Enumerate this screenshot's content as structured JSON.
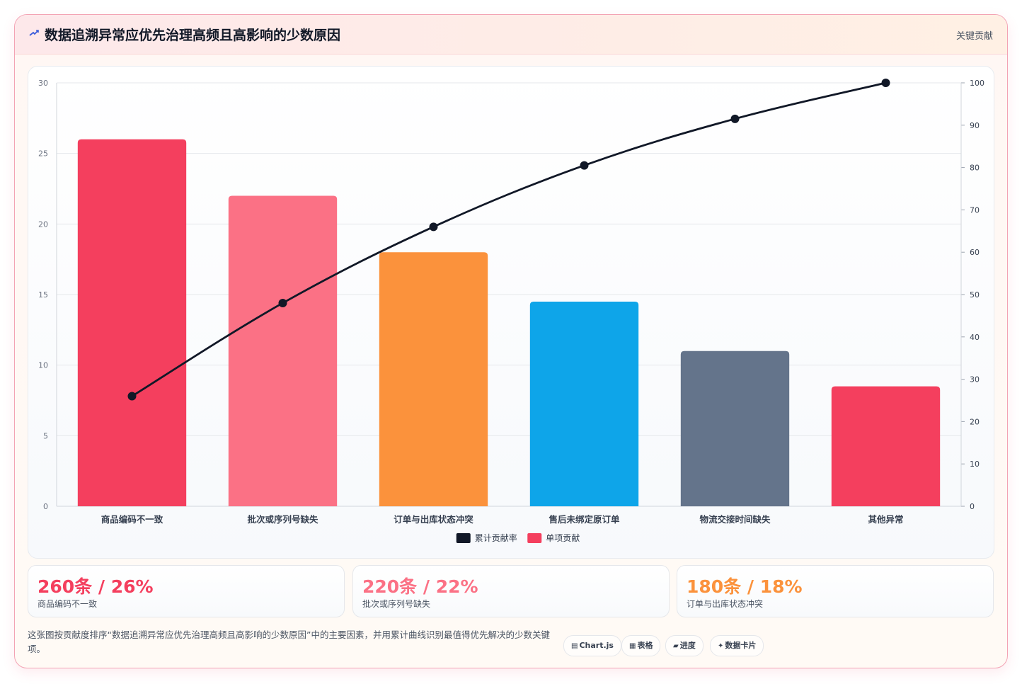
{
  "header": {
    "title": "数据追溯异常应优先治理高频且高影响的少数原因",
    "tag": "关键贡献",
    "icon": "trend-icon"
  },
  "chart_data": {
    "type": "bar",
    "categories": [
      "商品编码不一致",
      "批次或序列号缺失",
      "订单与出库状态冲突",
      "售后未绑定原订单",
      "物流交接时间缺失",
      "其他异常"
    ],
    "series": [
      {
        "name": "累计贡献率",
        "type": "line",
        "axis": "right",
        "color": "#111827",
        "values": [
          26,
          48,
          66,
          80.5,
          91.5,
          100
        ]
      },
      {
        "name": "单项贡献",
        "type": "bar",
        "axis": "left",
        "color": "#f43f5e",
        "values": [
          26,
          22,
          18,
          14.5,
          11,
          8.5
        ],
        "bar_colors": [
          "#f43f5e",
          "#fb7185",
          "#fb923c",
          "#0ea5e9",
          "#64748b",
          "#f43f5e"
        ]
      }
    ],
    "y_left": {
      "min": 0,
      "max": 30,
      "ticks": [
        0,
        5,
        10,
        15,
        20,
        25,
        30
      ]
    },
    "y_right": {
      "min": 0,
      "max": 100,
      "ticks": [
        0,
        10,
        20,
        30,
        40,
        50,
        60,
        70,
        80,
        90,
        100
      ]
    },
    "grid": true,
    "legend": "bottom-center"
  },
  "stats": [
    {
      "value": "260条 / 26%",
      "label": "商品编码不一致",
      "color": "#f43f5e"
    },
    {
      "value": "220条 / 22%",
      "label": "批次或序列号缺失",
      "color": "#fb7185"
    },
    {
      "value": "180条 / 18%",
      "label": "订单与出库状态冲突",
      "color": "#fb923c"
    }
  ],
  "footer": {
    "description": "这张图按贡献度排序“数据追溯异常应优先治理高频且高影响的少数原因”中的主要因素，并用累计曲线识别最值得优先解决的少数关键项。",
    "pills": [
      {
        "icon": "▤",
        "label": "Chart.js"
      },
      {
        "icon": "▦",
        "label": "表格"
      },
      {
        "icon": "▰",
        "label": "进度"
      },
      {
        "icon": "✦",
        "label": "数据卡片"
      }
    ]
  }
}
